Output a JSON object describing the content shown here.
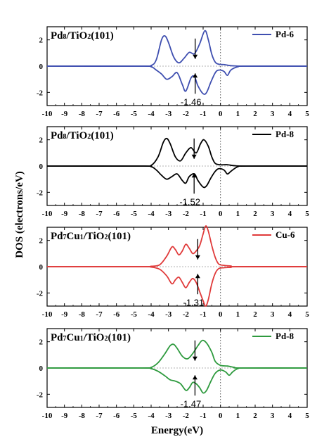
{
  "figure": {
    "ylabel": "DOS (electrons/eV)",
    "xlabel": "Energy(eV)"
  },
  "chart_data": [
    {
      "type": "line",
      "title": {
        "a": "Pd",
        "a_sub": "8",
        "b": "/TiO",
        "b_sub": "2",
        "c": "(101)"
      },
      "legend": "Pd-6",
      "legend_position": "top-right",
      "color": "#3f4fb0",
      "annotation": "-1.46",
      "arrow_x": -1.46,
      "xlim": [
        -10,
        5
      ],
      "ylim": [
        -3,
        3
      ],
      "xticks": [
        -10,
        -9,
        -8,
        -7,
        -6,
        -5,
        -4,
        -3,
        -2,
        -1,
        0,
        1,
        2,
        3,
        4,
        5
      ],
      "yticks": [
        2,
        0,
        -2
      ],
      "fermi_level": 0,
      "grid": false,
      "series": [
        {
          "up": [
            [
              -10,
              0
            ],
            [
              -4.6,
              0
            ],
            [
              -4,
              0.05
            ],
            [
              -3.7,
              0.5
            ],
            [
              -3.4,
              2
            ],
            [
              -3.2,
              2.3
            ],
            [
              -3.0,
              1.8
            ],
            [
              -2.7,
              0.7
            ],
            [
              -2.4,
              0.25
            ],
            [
              -2.1,
              0.6
            ],
            [
              -1.8,
              1.05
            ],
            [
              -1.5,
              0.95
            ],
            [
              -1.2,
              1.7
            ],
            [
              -0.9,
              2.7
            ],
            [
              -0.7,
              2.0
            ],
            [
              -0.5,
              0.9
            ],
            [
              -0.3,
              0.3
            ],
            [
              -0.1,
              0.15
            ],
            [
              0.2,
              0.12
            ],
            [
              0.5,
              0.05
            ],
            [
              0.8,
              0.02
            ],
            [
              1.5,
              0
            ],
            [
              5,
              0
            ]
          ],
          "down": [
            [
              -10,
              0
            ],
            [
              -4.6,
              0
            ],
            [
              -4,
              -0.05
            ],
            [
              -3.7,
              -0.3
            ],
            [
              -3.4,
              -0.6
            ],
            [
              -3.1,
              -1.0
            ],
            [
              -2.8,
              -0.8
            ],
            [
              -2.5,
              -0.5
            ],
            [
              -2.2,
              -1.4
            ],
            [
              -2.0,
              -1.9
            ],
            [
              -1.7,
              -0.9
            ],
            [
              -1.5,
              -0.8
            ],
            [
              -1.3,
              -1.5
            ],
            [
              -1.0,
              -2.1
            ],
            [
              -0.8,
              -2.0
            ],
            [
              -0.55,
              -1.2
            ],
            [
              -0.3,
              -0.5
            ],
            [
              -0.1,
              -0.3
            ],
            [
              0.2,
              -0.4
            ],
            [
              0.4,
              -0.7
            ],
            [
              0.6,
              -0.3
            ],
            [
              1.0,
              -0.05
            ],
            [
              1.5,
              0
            ],
            [
              5,
              0
            ]
          ]
        }
      ]
    },
    {
      "type": "line",
      "title": {
        "a": "Pd",
        "a_sub": "8",
        "b": "/TiO",
        "b_sub": "2",
        "c": "(101)"
      },
      "legend": "Pd-8",
      "legend_position": "top-right",
      "color": "#000000",
      "annotation": "-1.52",
      "arrow_x": -1.52,
      "xlim": [
        -10,
        5
      ],
      "ylim": [
        -3,
        3
      ],
      "xticks": [
        -10,
        -9,
        -8,
        -7,
        -6,
        -5,
        -4,
        -3,
        -2,
        -1,
        0,
        1,
        2,
        3,
        4,
        5
      ],
      "yticks": [
        2,
        0,
        -2
      ],
      "fermi_level": 0,
      "grid": false,
      "series": [
        {
          "up": [
            [
              -10,
              0
            ],
            [
              -4.6,
              0
            ],
            [
              -4,
              0.05
            ],
            [
              -3.6,
              0.7
            ],
            [
              -3.3,
              1.8
            ],
            [
              -3.1,
              2.1
            ],
            [
              -2.9,
              1.7
            ],
            [
              -2.6,
              0.7
            ],
            [
              -2.3,
              0.4
            ],
            [
              -2.0,
              1.0
            ],
            [
              -1.7,
              1.4
            ],
            [
              -1.4,
              1.0
            ],
            [
              -1.15,
              1.7
            ],
            [
              -0.95,
              2.0
            ],
            [
              -0.7,
              1.5
            ],
            [
              -0.5,
              0.7
            ],
            [
              -0.3,
              0.2
            ],
            [
              0,
              0.1
            ],
            [
              0.4,
              0.1
            ],
            [
              0.8,
              0.03
            ],
            [
              1.5,
              0
            ],
            [
              5,
              0
            ]
          ],
          "down": [
            [
              -10,
              0
            ],
            [
              -4.6,
              0
            ],
            [
              -4,
              -0.05
            ],
            [
              -3.7,
              -0.3
            ],
            [
              -3.4,
              -0.7
            ],
            [
              -3.1,
              -1.0
            ],
            [
              -2.8,
              -0.8
            ],
            [
              -2.5,
              -0.6
            ],
            [
              -2.2,
              -1.1
            ],
            [
              -2.0,
              -1.3
            ],
            [
              -1.8,
              -0.8
            ],
            [
              -1.5,
              -0.6
            ],
            [
              -1.3,
              -1.1
            ],
            [
              -1.0,
              -1.6
            ],
            [
              -0.8,
              -1.5
            ],
            [
              -0.55,
              -0.9
            ],
            [
              -0.3,
              -0.4
            ],
            [
              -0.1,
              -0.2
            ],
            [
              0.2,
              -0.3
            ],
            [
              0.4,
              -0.6
            ],
            [
              0.6,
              -0.4
            ],
            [
              1.0,
              -0.05
            ],
            [
              1.5,
              0
            ],
            [
              5,
              0
            ]
          ]
        }
      ]
    },
    {
      "type": "line",
      "title": {
        "a": "Pd",
        "a_sub": "7",
        "b": "Cu",
        "b_sub": "1",
        "c": "/TiO",
        "c_sub": "2",
        "d": "(101)"
      },
      "legend": "Cu-6",
      "legend_position": "top-right",
      "color": "#e03a3a",
      "annotation": "-1.31",
      "arrow_x": -1.31,
      "xlim": [
        -10,
        5
      ],
      "ylim": [
        -3,
        3
      ],
      "xticks": [
        -10,
        -9,
        -8,
        -7,
        -6,
        -5,
        -4,
        -3,
        -2,
        -1,
        0,
        1,
        2,
        3,
        4,
        5
      ],
      "yticks": [
        2,
        0,
        -2
      ],
      "fermi_level": 0,
      "grid": false,
      "series": [
        {
          "up": [
            [
              -10,
              0
            ],
            [
              -4.6,
              0
            ],
            [
              -4,
              0.03
            ],
            [
              -3.5,
              0.15
            ],
            [
              -3.1,
              0.8
            ],
            [
              -2.8,
              1.5
            ],
            [
              -2.6,
              1.3
            ],
            [
              -2.4,
              0.9
            ],
            [
              -2.2,
              1.2
            ],
            [
              -2.0,
              1.7
            ],
            [
              -1.8,
              1.4
            ],
            [
              -1.6,
              1.0
            ],
            [
              -1.4,
              1.2
            ],
            [
              -1.2,
              1.6
            ],
            [
              -1.0,
              2.5
            ],
            [
              -0.85,
              3.1
            ],
            [
              -0.7,
              2.7
            ],
            [
              -0.5,
              1.6
            ],
            [
              -0.3,
              0.7
            ],
            [
              -0.1,
              0.2
            ],
            [
              0.2,
              0.1
            ],
            [
              0.6,
              0.05
            ],
            [
              1.0,
              0
            ],
            [
              5,
              0
            ]
          ],
          "down": [
            [
              -10,
              0
            ],
            [
              -4.6,
              0
            ],
            [
              -4,
              -0.03
            ],
            [
              -3.5,
              -0.2
            ],
            [
              -3.1,
              -0.7
            ],
            [
              -2.8,
              -1.3
            ],
            [
              -2.6,
              -1.0
            ],
            [
              -2.4,
              -0.8
            ],
            [
              -2.2,
              -1.2
            ],
            [
              -2.0,
              -1.6
            ],
            [
              -1.8,
              -1.2
            ],
            [
              -1.6,
              -0.9
            ],
            [
              -1.4,
              -1.2
            ],
            [
              -1.2,
              -1.9
            ],
            [
              -1.0,
              -2.6
            ],
            [
              -0.85,
              -3.0
            ],
            [
              -0.7,
              -2.5
            ],
            [
              -0.5,
              -1.3
            ],
            [
              -0.3,
              -0.5
            ],
            [
              -0.1,
              -0.15
            ],
            [
              0.2,
              -0.08
            ],
            [
              0.6,
              -0.05
            ],
            [
              1.0,
              0
            ],
            [
              5,
              0
            ]
          ]
        }
      ]
    },
    {
      "type": "line",
      "title": {
        "a": "Pd",
        "a_sub": "7",
        "b": "Cu",
        "b_sub": "1",
        "c": "/TiO",
        "c_sub": "2",
        "d": "(101)"
      },
      "legend": "Pd-8",
      "legend_position": "top-right",
      "color": "#2e9a3e",
      "annotation": "-1.47",
      "arrow_x": -1.47,
      "xlim": [
        -10,
        5
      ],
      "ylim": [
        -3,
        3
      ],
      "xticks": [
        -10,
        -9,
        -8,
        -7,
        -6,
        -5,
        -4,
        -3,
        -2,
        -1,
        0,
        1,
        2,
        3,
        4,
        5
      ],
      "yticks": [
        2,
        0,
        -2
      ],
      "fermi_level": 0,
      "grid": false,
      "series": [
        {
          "up": [
            [
              -10,
              0
            ],
            [
              -4.6,
              0
            ],
            [
              -4,
              0.05
            ],
            [
              -3.6,
              0.4
            ],
            [
              -3.2,
              1.1
            ],
            [
              -2.9,
              1.7
            ],
            [
              -2.7,
              1.8
            ],
            [
              -2.5,
              1.5
            ],
            [
              -2.2,
              0.9
            ],
            [
              -1.9,
              0.7
            ],
            [
              -1.6,
              1.1
            ],
            [
              -1.3,
              1.7
            ],
            [
              -1.05,
              2.1
            ],
            [
              -0.8,
              1.9
            ],
            [
              -0.5,
              1.2
            ],
            [
              -0.3,
              0.5
            ],
            [
              0,
              0.2
            ],
            [
              0.4,
              0.15
            ],
            [
              0.8,
              0.05
            ],
            [
              1.2,
              0
            ],
            [
              5,
              0
            ]
          ],
          "down": [
            [
              -10,
              0
            ],
            [
              -4.6,
              0
            ],
            [
              -4,
              -0.05
            ],
            [
              -3.6,
              -0.25
            ],
            [
              -3.2,
              -0.6
            ],
            [
              -2.9,
              -0.9
            ],
            [
              -2.6,
              -1.0
            ],
            [
              -2.3,
              -1.2
            ],
            [
              -2.0,
              -1.7
            ],
            [
              -1.8,
              -1.5
            ],
            [
              -1.6,
              -1.1
            ],
            [
              -1.4,
              -1.2
            ],
            [
              -1.2,
              -1.5
            ],
            [
              -1.0,
              -1.9
            ],
            [
              -0.8,
              -1.7
            ],
            [
              -0.55,
              -1.0
            ],
            [
              -0.3,
              -0.4
            ],
            [
              0,
              -0.15
            ],
            [
              0.3,
              -0.3
            ],
            [
              0.5,
              -0.55
            ],
            [
              0.7,
              -0.3
            ],
            [
              1.0,
              -0.05
            ],
            [
              1.5,
              0
            ],
            [
              5,
              0
            ]
          ]
        }
      ]
    }
  ]
}
